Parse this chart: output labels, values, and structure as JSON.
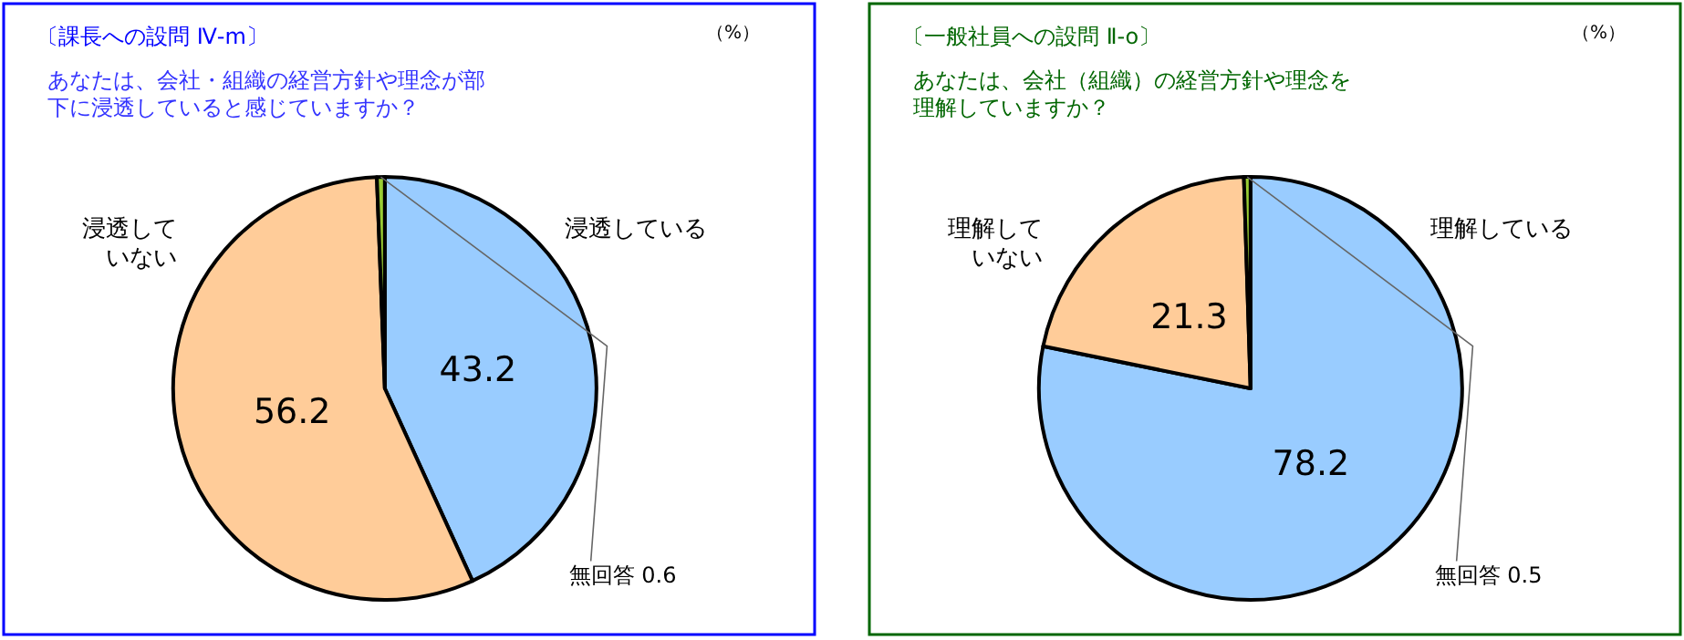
{
  "chart_data": [
    {
      "type": "pie",
      "title": "〔課長への設問 Ⅳ-m〕",
      "subtitle": "あなたは、会社・組織の経営方針や理念が部下に浸透していると感じていますか？",
      "annotations": [
        "（%）"
      ],
      "categories": [
        "浸透している",
        "浸透していない",
        "無回答"
      ],
      "values": [
        43.2,
        56.2,
        0.6
      ],
      "value_labels": [
        "43.2",
        "56.2",
        "0.6"
      ],
      "colors": [
        "#99ccff",
        "#ffcc99",
        "#99cc33"
      ]
    },
    {
      "type": "pie",
      "title": "〔一般社員への設問 Ⅱ-o〕",
      "subtitle": "あなたは、会社（組織）の経営方針や理念を理解していますか？",
      "annotations": [
        "（%）"
      ],
      "categories": [
        "理解している",
        "理解していない",
        "無回答"
      ],
      "values": [
        78.2,
        21.3,
        0.5
      ],
      "value_labels": [
        "78.2",
        "21.3",
        "0.5"
      ],
      "colors": [
        "#99ccff",
        "#ffcc99",
        "#99cc33"
      ]
    }
  ]
}
